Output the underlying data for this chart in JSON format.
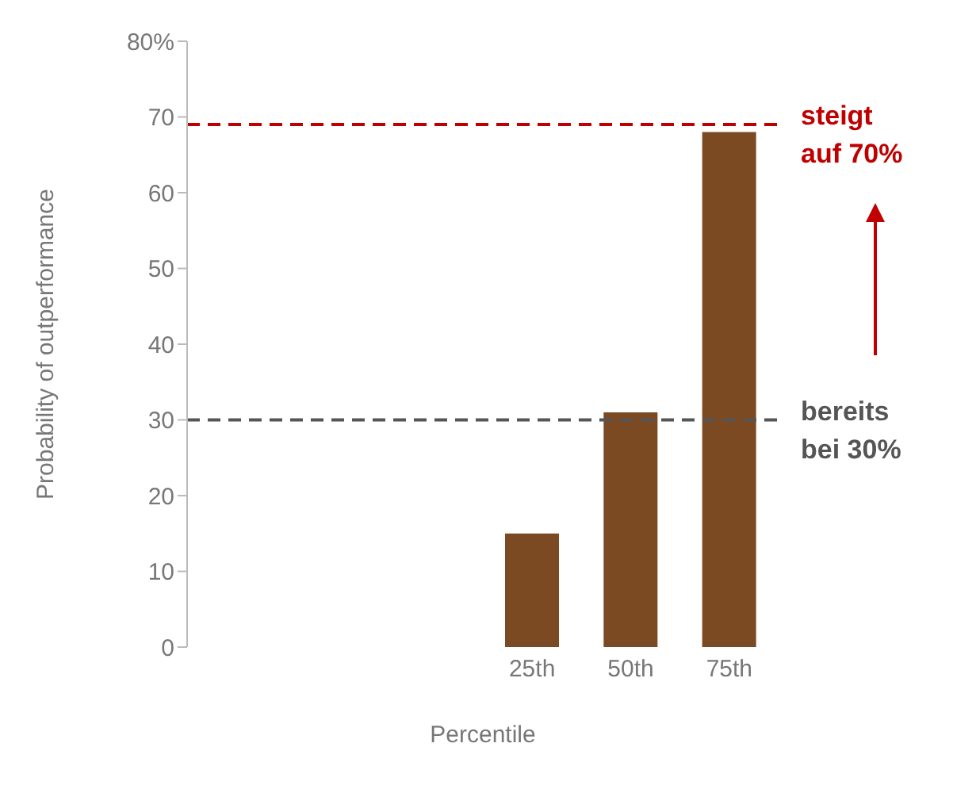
{
  "chart_data": {
    "type": "bar",
    "xlabel": "Percentile",
    "ylabel": "Probability of outperformance",
    "categories": [
      null,
      null,
      null,
      "25th",
      "50th",
      "75th"
    ],
    "values": [
      null,
      null,
      null,
      15,
      31,
      68
    ],
    "color": "#7b4a22",
    "ylim": [
      0,
      80
    ],
    "yticks": [
      0,
      10,
      20,
      30,
      40,
      50,
      60,
      {
        "value": 80,
        "label": "80%"
      },
      70
    ],
    "grid": false,
    "ref_lines": [
      {
        "axis": "y",
        "value": 69,
        "label": "steigt auf 70%",
        "color": "#c00000",
        "line_style": "dashed"
      },
      {
        "axis": "y",
        "value": 30,
        "label": "bereits bei 30%",
        "color": "#555555",
        "line_style": "dashed"
      }
    ]
  }
}
